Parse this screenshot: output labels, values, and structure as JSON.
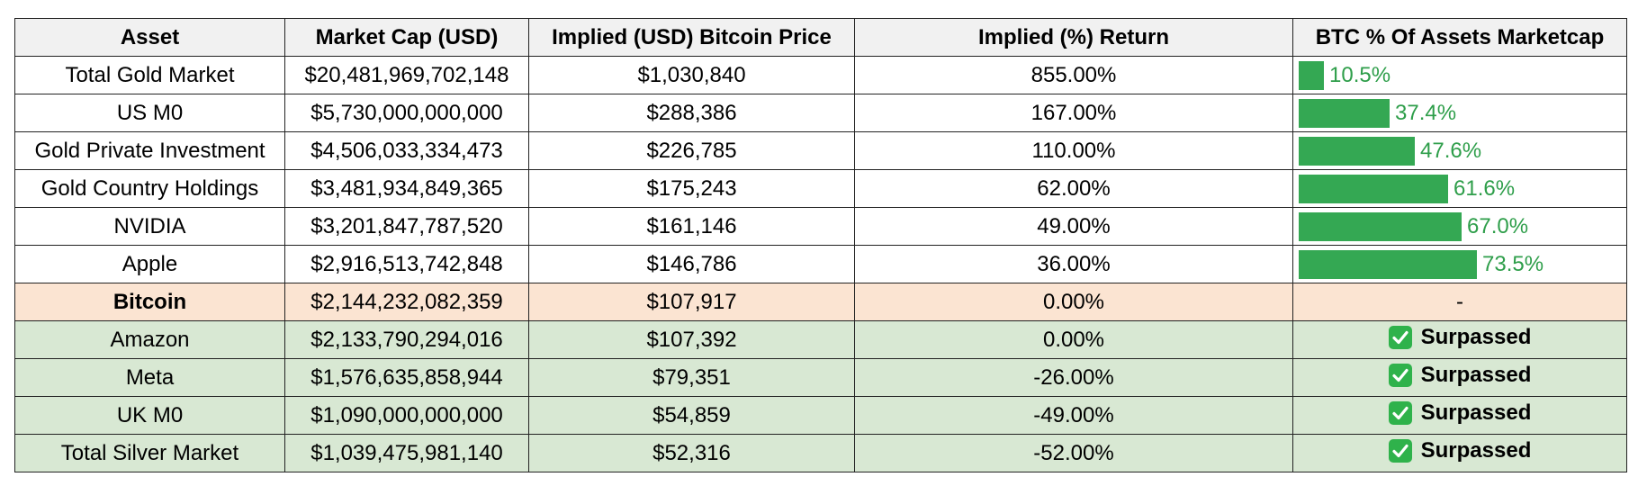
{
  "table": {
    "headers": [
      "Asset",
      "Market Cap (USD)",
      "Implied (USD) Bitcoin Price",
      "Implied (%) Return",
      "BTC % Of Assets Marketcap"
    ],
    "rows": [
      {
        "asset": "Total Gold Market",
        "market_cap": "$20,481,969,702,148",
        "implied_price": "$1,030,840",
        "implied_return": "855.00%",
        "btc_pct_label": "10.5%",
        "btc_pct": 10.5,
        "status": "bar"
      },
      {
        "asset": "US M0",
        "market_cap": "$5,730,000,000,000",
        "implied_price": "$288,386",
        "implied_return": "167.00%",
        "btc_pct_label": "37.4%",
        "btc_pct": 37.4,
        "status": "bar"
      },
      {
        "asset": "Gold Private Investment",
        "market_cap": "$4,506,033,334,473",
        "implied_price": "$226,785",
        "implied_return": "110.00%",
        "btc_pct_label": "47.6%",
        "btc_pct": 47.6,
        "status": "bar"
      },
      {
        "asset": "Gold Country Holdings",
        "market_cap": "$3,481,934,849,365",
        "implied_price": "$175,243",
        "implied_return": "62.00%",
        "btc_pct_label": "61.6%",
        "btc_pct": 61.6,
        "status": "bar"
      },
      {
        "asset": "NVIDIA",
        "market_cap": "$3,201,847,787,520",
        "implied_price": "$161,146",
        "implied_return": "49.00%",
        "btc_pct_label": "67.0%",
        "btc_pct": 67.0,
        "status": "bar"
      },
      {
        "asset": "Apple",
        "market_cap": "$2,916,513,742,848",
        "implied_price": "$146,786",
        "implied_return": "36.00%",
        "btc_pct_label": "73.5%",
        "btc_pct": 73.5,
        "status": "bar"
      },
      {
        "asset": "Bitcoin",
        "market_cap": "$2,144,232,082,359",
        "implied_price": "$107,917",
        "implied_return": "0.00%",
        "btc_pct_label": "-",
        "status": "current"
      },
      {
        "asset": "Amazon",
        "market_cap": "$2,133,790,294,016",
        "implied_price": "$107,392",
        "implied_return": "0.00%",
        "btc_pct_label": "Surpassed",
        "status": "surpassed"
      },
      {
        "asset": "Meta",
        "market_cap": "$1,576,635,858,944",
        "implied_price": "$79,351",
        "implied_return": "-26.00%",
        "btc_pct_label": "Surpassed",
        "status": "surpassed"
      },
      {
        "asset": "UK M0",
        "market_cap": "$1,090,000,000,000",
        "implied_price": "$54,859",
        "implied_return": "-49.00%",
        "btc_pct_label": "Surpassed",
        "status": "surpassed"
      },
      {
        "asset": "Total Silver Market",
        "market_cap": "$1,039,475,981,140",
        "implied_price": "$52,316",
        "implied_return": "-52.00%",
        "btc_pct_label": "Surpassed",
        "status": "surpassed"
      }
    ]
  },
  "colors": {
    "bar": "#34a853",
    "bar_label": "#2e9e4a",
    "current_row_bg": "#fbe4d2",
    "surpassed_row_bg": "#d8e8d3",
    "header_bg": "#f1f1f1",
    "check_icon": "#2fb24b"
  },
  "icons": {
    "surpassed": "check-mark-box-icon"
  }
}
